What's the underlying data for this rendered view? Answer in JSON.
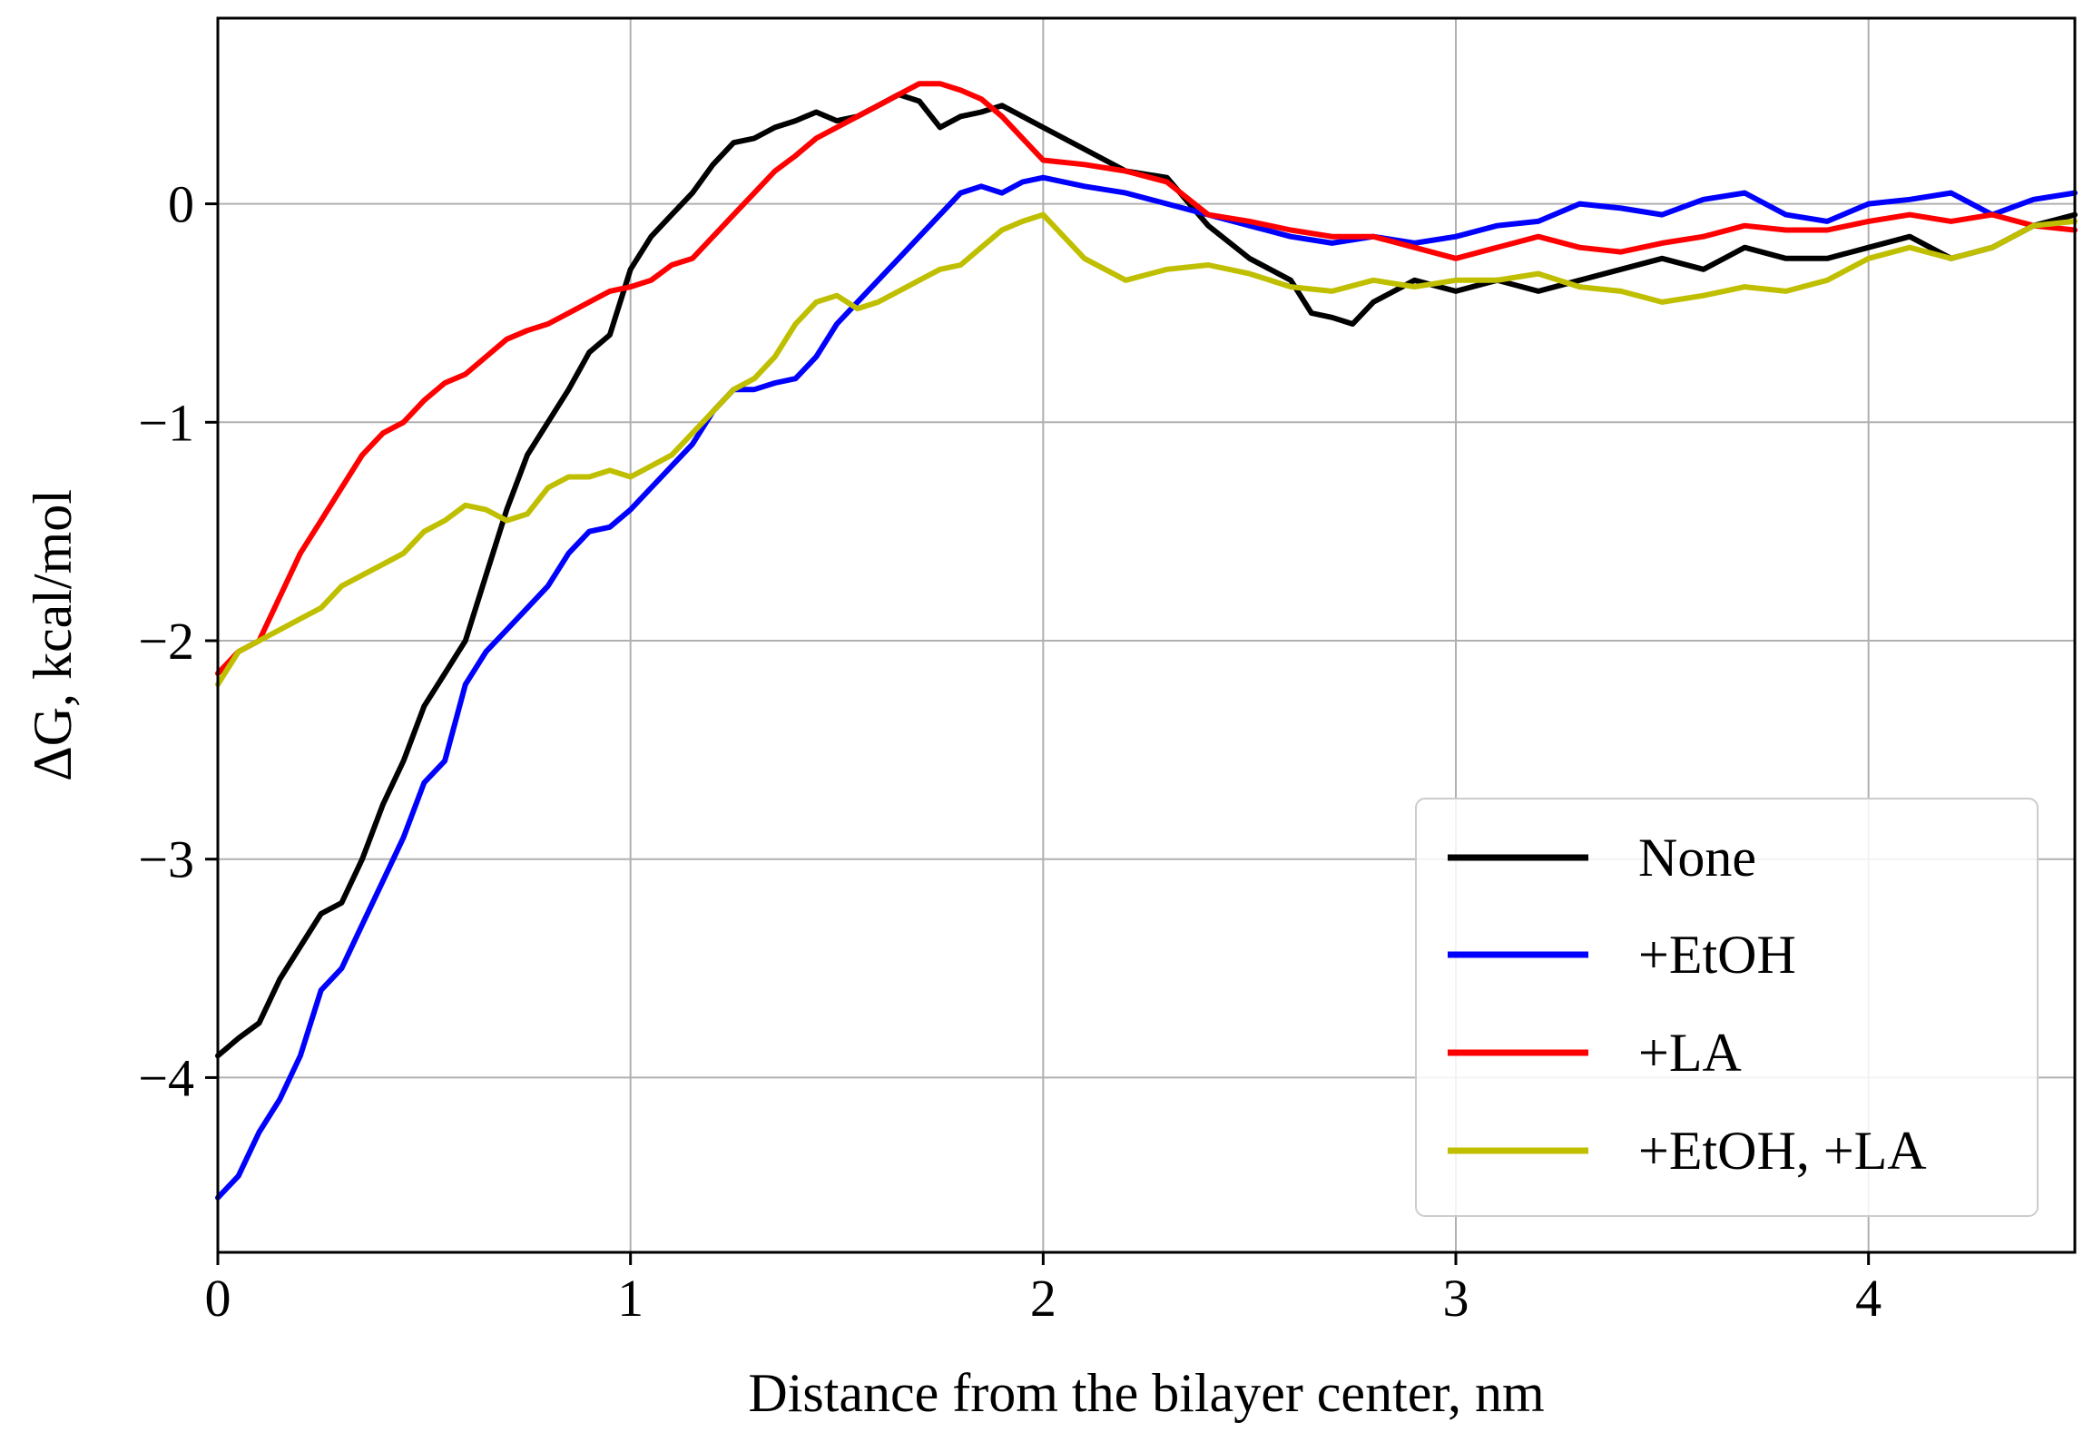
{
  "chart_data": {
    "type": "line",
    "title": "",
    "xlabel": "Distance from the bilayer center, nm",
    "ylabel": "ΔG, kcal/mol",
    "xlim": [
      0,
      4.5
    ],
    "ylim": [
      -4.8,
      0.85
    ],
    "xticks": [
      0,
      1,
      2,
      3,
      4
    ],
    "yticks": [
      0,
      -1,
      -2,
      -3,
      -4
    ],
    "xtick_labels": [
      "0",
      "1",
      "2",
      "3",
      "4"
    ],
    "ytick_labels": [
      "0",
      "−1",
      "−2",
      "−3",
      "−4"
    ],
    "grid": true,
    "legend": "bottom-right",
    "series": [
      {
        "name": "None",
        "color": "#000000",
        "x": [
          0,
          0.05,
          0.1,
          0.15,
          0.2,
          0.25,
          0.3,
          0.35,
          0.4,
          0.45,
          0.5,
          0.55,
          0.6,
          0.65,
          0.7,
          0.75,
          0.8,
          0.85,
          0.9,
          0.95,
          1.0,
          1.05,
          1.1,
          1.15,
          1.2,
          1.25,
          1.3,
          1.35,
          1.4,
          1.45,
          1.5,
          1.55,
          1.6,
          1.65,
          1.7,
          1.75,
          1.8,
          1.85,
          1.9,
          1.95,
          2.0,
          2.1,
          2.2,
          2.3,
          2.4,
          2.5,
          2.6,
          2.65,
          2.7,
          2.75,
          2.8,
          2.9,
          3.0,
          3.1,
          3.2,
          3.3,
          3.4,
          3.5,
          3.6,
          3.7,
          3.8,
          3.9,
          4.0,
          4.1,
          4.2,
          4.3,
          4.4,
          4.5
        ],
        "y": [
          -3.9,
          -3.82,
          -3.75,
          -3.55,
          -3.4,
          -3.25,
          -3.2,
          -3.0,
          -2.75,
          -2.55,
          -2.3,
          -2.15,
          -2.0,
          -1.7,
          -1.4,
          -1.15,
          -1.0,
          -0.85,
          -0.68,
          -0.6,
          -0.3,
          -0.15,
          -0.05,
          0.05,
          0.18,
          0.28,
          0.3,
          0.35,
          0.38,
          0.42,
          0.38,
          0.4,
          0.45,
          0.5,
          0.47,
          0.35,
          0.4,
          0.42,
          0.45,
          0.4,
          0.35,
          0.25,
          0.15,
          0.12,
          -0.1,
          -0.25,
          -0.35,
          -0.5,
          -0.52,
          -0.55,
          -0.45,
          -0.35,
          -0.4,
          -0.35,
          -0.4,
          -0.35,
          -0.3,
          -0.25,
          -0.3,
          -0.2,
          -0.25,
          -0.25,
          -0.2,
          -0.15,
          -0.25,
          -0.2,
          -0.1,
          -0.05
        ]
      },
      {
        "name": "+EtOH",
        "color": "#0000ff",
        "x": [
          0,
          0.05,
          0.1,
          0.15,
          0.2,
          0.25,
          0.3,
          0.35,
          0.4,
          0.45,
          0.5,
          0.55,
          0.6,
          0.65,
          0.7,
          0.75,
          0.8,
          0.85,
          0.9,
          0.95,
          1.0,
          1.05,
          1.1,
          1.15,
          1.2,
          1.25,
          1.3,
          1.35,
          1.4,
          1.45,
          1.5,
          1.55,
          1.6,
          1.65,
          1.7,
          1.75,
          1.8,
          1.85,
          1.9,
          1.95,
          2.0,
          2.1,
          2.2,
          2.3,
          2.4,
          2.5,
          2.6,
          2.7,
          2.8,
          2.9,
          3.0,
          3.1,
          3.2,
          3.3,
          3.4,
          3.5,
          3.6,
          3.7,
          3.8,
          3.9,
          4.0,
          4.1,
          4.2,
          4.3,
          4.4,
          4.5
        ],
        "y": [
          -4.55,
          -4.45,
          -4.25,
          -4.1,
          -3.9,
          -3.6,
          -3.5,
          -3.3,
          -3.1,
          -2.9,
          -2.65,
          -2.55,
          -2.2,
          -2.05,
          -1.95,
          -1.85,
          -1.75,
          -1.6,
          -1.5,
          -1.48,
          -1.4,
          -1.3,
          -1.2,
          -1.1,
          -0.95,
          -0.85,
          -0.85,
          -0.82,
          -0.8,
          -0.7,
          -0.55,
          -0.45,
          -0.35,
          -0.25,
          -0.15,
          -0.05,
          0.05,
          0.08,
          0.05,
          0.1,
          0.12,
          0.08,
          0.05,
          0.0,
          -0.05,
          -0.1,
          -0.15,
          -0.18,
          -0.15,
          -0.18,
          -0.15,
          -0.1,
          -0.08,
          0.0,
          -0.02,
          -0.05,
          0.02,
          0.05,
          -0.05,
          -0.08,
          0.0,
          0.02,
          0.05,
          -0.05,
          0.02,
          0.05
        ]
      },
      {
        "name": "+LA",
        "color": "#ff0000",
        "x": [
          0,
          0.05,
          0.1,
          0.15,
          0.2,
          0.25,
          0.3,
          0.35,
          0.4,
          0.45,
          0.5,
          0.55,
          0.6,
          0.65,
          0.7,
          0.75,
          0.8,
          0.85,
          0.9,
          0.95,
          1.0,
          1.05,
          1.1,
          1.15,
          1.2,
          1.25,
          1.3,
          1.35,
          1.4,
          1.45,
          1.5,
          1.55,
          1.6,
          1.65,
          1.7,
          1.75,
          1.8,
          1.85,
          1.9,
          1.95,
          2.0,
          2.1,
          2.2,
          2.3,
          2.4,
          2.5,
          2.6,
          2.7,
          2.8,
          2.9,
          3.0,
          3.1,
          3.2,
          3.3,
          3.4,
          3.5,
          3.6,
          3.7,
          3.8,
          3.9,
          4.0,
          4.1,
          4.2,
          4.3,
          4.4,
          4.5
        ],
        "y": [
          -2.15,
          -2.05,
          -2.0,
          -1.8,
          -1.6,
          -1.45,
          -1.3,
          -1.15,
          -1.05,
          -1.0,
          -0.9,
          -0.82,
          -0.78,
          -0.7,
          -0.62,
          -0.58,
          -0.55,
          -0.5,
          -0.45,
          -0.4,
          -0.38,
          -0.35,
          -0.28,
          -0.25,
          -0.15,
          -0.05,
          0.05,
          0.15,
          0.22,
          0.3,
          0.35,
          0.4,
          0.45,
          0.5,
          0.55,
          0.55,
          0.52,
          0.48,
          0.4,
          0.3,
          0.2,
          0.18,
          0.15,
          0.1,
          -0.05,
          -0.08,
          -0.12,
          -0.15,
          -0.15,
          -0.2,
          -0.25,
          -0.2,
          -0.15,
          -0.2,
          -0.22,
          -0.18,
          -0.15,
          -0.1,
          -0.12,
          -0.12,
          -0.08,
          -0.05,
          -0.08,
          -0.05,
          -0.1,
          -0.12
        ]
      },
      {
        "name": "+EtOH, +LA",
        "color": "#bfbf00",
        "x": [
          0,
          0.05,
          0.1,
          0.15,
          0.2,
          0.25,
          0.3,
          0.35,
          0.4,
          0.45,
          0.5,
          0.55,
          0.6,
          0.65,
          0.7,
          0.75,
          0.8,
          0.85,
          0.9,
          0.95,
          1.0,
          1.05,
          1.1,
          1.15,
          1.2,
          1.25,
          1.3,
          1.35,
          1.4,
          1.45,
          1.5,
          1.55,
          1.6,
          1.65,
          1.7,
          1.75,
          1.8,
          1.85,
          1.9,
          1.95,
          2.0,
          2.1,
          2.2,
          2.3,
          2.4,
          2.5,
          2.6,
          2.7,
          2.8,
          2.9,
          3.0,
          3.1,
          3.2,
          3.3,
          3.4,
          3.5,
          3.6,
          3.7,
          3.8,
          3.9,
          4.0,
          4.1,
          4.2,
          4.3,
          4.4,
          4.5
        ],
        "y": [
          -2.2,
          -2.05,
          -2.0,
          -1.95,
          -1.9,
          -1.85,
          -1.75,
          -1.7,
          -1.65,
          -1.6,
          -1.5,
          -1.45,
          -1.38,
          -1.4,
          -1.45,
          -1.42,
          -1.3,
          -1.25,
          -1.25,
          -1.22,
          -1.25,
          -1.2,
          -1.15,
          -1.05,
          -0.95,
          -0.85,
          -0.8,
          -0.7,
          -0.55,
          -0.45,
          -0.42,
          -0.48,
          -0.45,
          -0.4,
          -0.35,
          -0.3,
          -0.28,
          -0.2,
          -0.12,
          -0.08,
          -0.05,
          -0.25,
          -0.35,
          -0.3,
          -0.28,
          -0.32,
          -0.38,
          -0.4,
          -0.35,
          -0.38,
          -0.35,
          -0.35,
          -0.32,
          -0.38,
          -0.4,
          -0.45,
          -0.42,
          -0.38,
          -0.4,
          -0.35,
          -0.25,
          -0.2,
          -0.25,
          -0.2,
          -0.1,
          -0.08
        ]
      }
    ]
  }
}
